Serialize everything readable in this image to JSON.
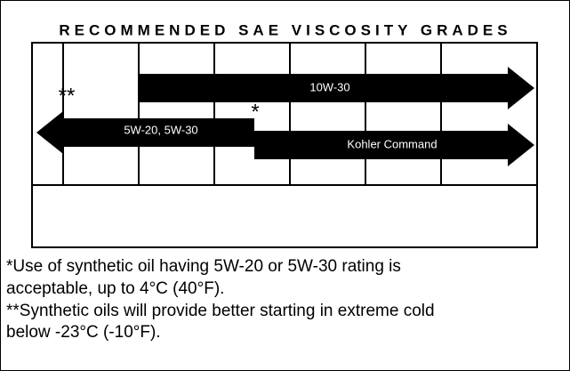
{
  "title": "RECOMMENDED SAE VISCOSITY GRADES",
  "arrows": [
    {
      "label": "10W-30"
    },
    {
      "label": "5W-20, 5W-30"
    },
    {
      "label": "Kohler Command"
    }
  ],
  "markers": {
    "double": "**",
    "single": "*"
  },
  "notes": [
    "*Use of synthetic oil having 5W-20 or 5W-30 rating is",
    "acceptable, up to 4°C (40°F).",
    "**Synthetic oils will provide better starting in extreme cold",
    "below -23°C (-10°F)."
  ]
}
